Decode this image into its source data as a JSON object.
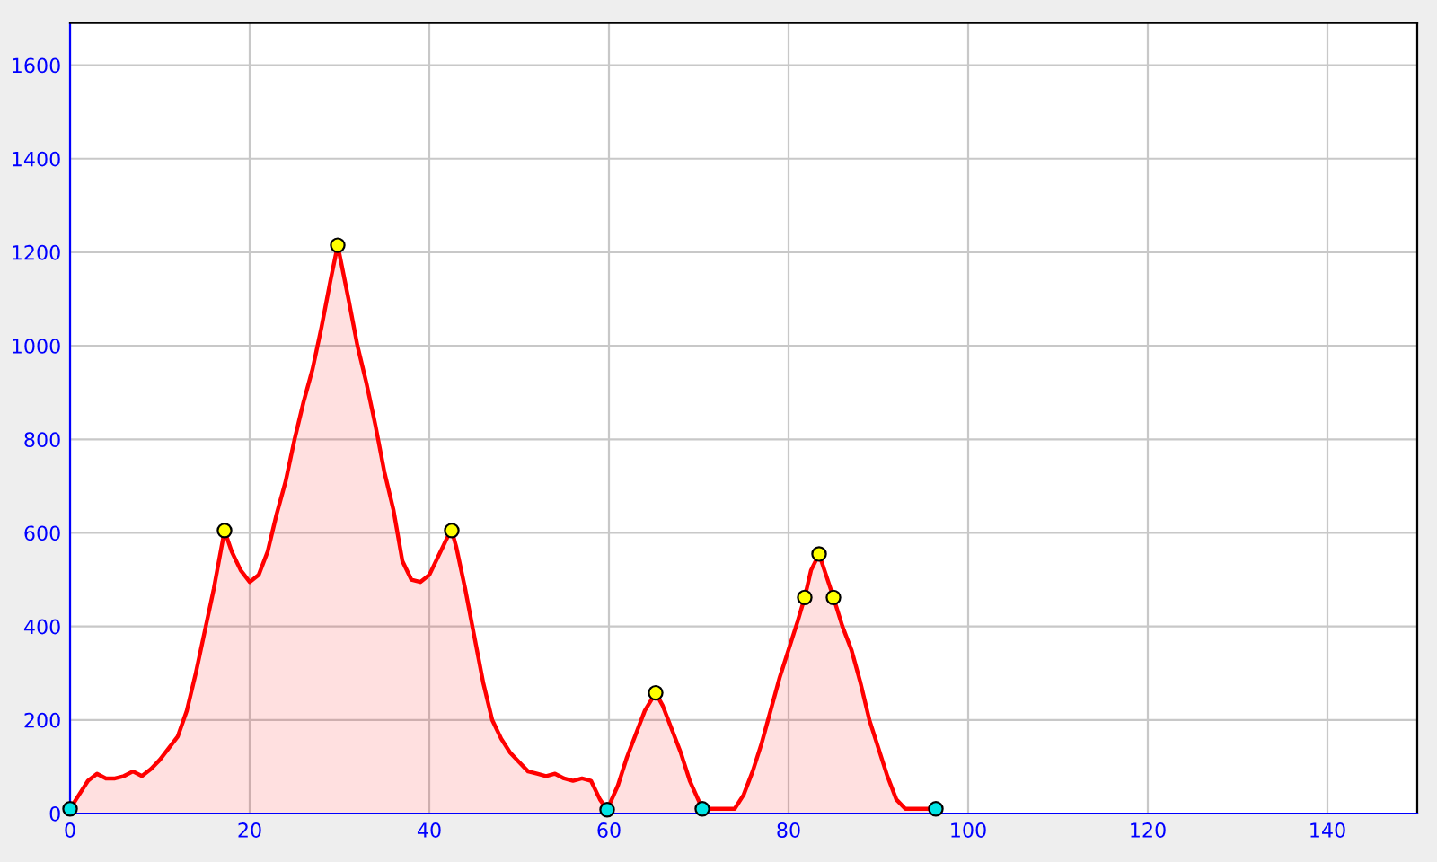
{
  "chart_data": {
    "type": "area",
    "series": [
      {
        "color": "#ff0000",
        "marker": "none",
        "x": [
          0,
          1,
          2,
          3,
          4,
          5,
          6,
          7,
          8,
          9,
          10,
          11,
          12,
          13,
          14,
          15,
          16,
          17.2,
          18,
          19,
          20,
          21,
          22,
          23,
          24,
          25,
          26,
          27,
          28,
          29,
          29.8,
          31,
          32,
          33,
          34,
          35,
          36,
          37,
          38,
          39,
          40,
          41,
          42,
          42.5,
          43,
          44,
          45,
          46,
          47,
          48,
          49,
          50,
          51,
          52,
          53,
          54,
          55,
          56,
          57,
          58,
          59,
          59.8,
          61,
          62,
          63,
          64,
          65.2,
          66,
          67,
          68,
          69,
          70.4,
          71,
          74,
          75,
          76,
          77,
          78,
          79,
          80,
          81,
          81.8,
          82.5,
          83.4,
          84,
          85,
          86,
          87,
          88,
          89,
          90,
          91,
          92,
          93,
          96.4
        ],
        "values": [
          10,
          40,
          70,
          85,
          75,
          75,
          80,
          90,
          80,
          95,
          115,
          140,
          165,
          220,
          300,
          390,
          480,
          605,
          560,
          520,
          495,
          510,
          560,
          640,
          710,
          800,
          880,
          950,
          1040,
          1140,
          1215,
          1100,
          1000,
          920,
          830,
          730,
          650,
          540,
          500,
          495,
          510,
          550,
          590,
          605,
          570,
          480,
          380,
          280,
          200,
          160,
          130,
          110,
          90,
          85,
          80,
          85,
          75,
          70,
          75,
          70,
          30,
          8,
          60,
          120,
          170,
          220,
          258,
          230,
          180,
          130,
          70,
          10,
          10,
          10,
          40,
          90,
          150,
          220,
          290,
          350,
          410,
          462,
          520,
          555,
          520,
          462,
          400,
          350,
          280,
          200,
          140,
          80,
          30,
          10,
          10
        ]
      },
      {
        "type": "scatter",
        "color": "#ffff00",
        "marker": "circle",
        "x": [
          17.2,
          29.8,
          42.5,
          65.2,
          81.8,
          83.4,
          85
        ],
        "values": [
          605,
          1215,
          605,
          258,
          462,
          555,
          462
        ]
      },
      {
        "type": "scatter",
        "color": "#00e5e5",
        "marker": "circle",
        "x": [
          0,
          59.8,
          70.4,
          96.4
        ],
        "values": [
          10,
          8,
          10,
          10
        ]
      }
    ],
    "xlim": [
      0,
      150
    ],
    "ylim": [
      0,
      1690
    ],
    "xticks": [
      0,
      20,
      40,
      60,
      80,
      100,
      120,
      140
    ],
    "yticks": [
      0,
      200,
      400,
      600,
      800,
      1000,
      1200,
      1400,
      1600
    ],
    "grid": true
  }
}
